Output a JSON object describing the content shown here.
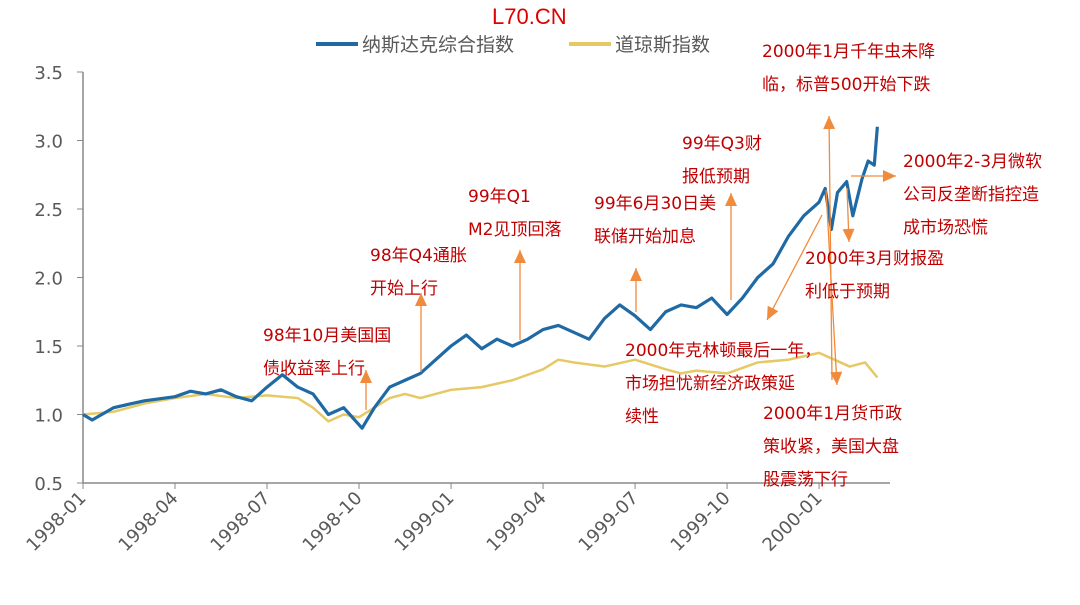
{
  "watermark": "L70.CN",
  "chart_data": {
    "type": "line",
    "title": "",
    "xlabel": "",
    "ylabel": "",
    "ylim": [
      0.5,
      3.5
    ],
    "yticks": [
      "0.5",
      "1.0",
      "1.5",
      "2.0",
      "2.5",
      "3.0",
      "3.5"
    ],
    "xticks": [
      "1998-01",
      "1998-04",
      "1998-07",
      "1998-10",
      "1999-01",
      "1999-04",
      "1999-07",
      "1999-10",
      "2000-01"
    ],
    "x_unit": "months since 1998-01",
    "legend_position": "top",
    "series": [
      {
        "name": "纳斯达克综合指数",
        "color": "#1f6aa5",
        "x": [
          0,
          0.3,
          1,
          2,
          3,
          3.5,
          4,
          4.5,
          5,
          5.5,
          6,
          6.5,
          7,
          7.5,
          8,
          8.5,
          9.1,
          9.5,
          10,
          10.5,
          11,
          11.5,
          12,
          12.5,
          13,
          13.5,
          14,
          14.5,
          15,
          15.5,
          16,
          16.5,
          17,
          17.5,
          18,
          18.5,
          19,
          19.5,
          20,
          20.5,
          21,
          21.5,
          22,
          22.5,
          23,
          23.5,
          24,
          24.2,
          24.4,
          24.6,
          24.9,
          25.1,
          25.4,
          25.6,
          25.8,
          25.9
        ],
        "values": [
          1.0,
          0.96,
          1.05,
          1.1,
          1.13,
          1.17,
          1.15,
          1.18,
          1.13,
          1.1,
          1.2,
          1.29,
          1.2,
          1.15,
          1.0,
          1.05,
          0.9,
          1.05,
          1.2,
          1.25,
          1.3,
          1.4,
          1.5,
          1.58,
          1.48,
          1.55,
          1.5,
          1.55,
          1.62,
          1.65,
          1.6,
          1.55,
          1.7,
          1.8,
          1.72,
          1.62,
          1.75,
          1.8,
          1.78,
          1.85,
          1.73,
          1.85,
          2.0,
          2.1,
          2.3,
          2.45,
          2.55,
          2.65,
          2.35,
          2.62,
          2.7,
          2.45,
          2.72,
          2.85,
          2.82,
          3.1
        ]
      },
      {
        "name": "道琼斯指数",
        "color": "#e6c865",
        "x": [
          0,
          1,
          2,
          3,
          4,
          5,
          6,
          7,
          7.5,
          8,
          8.5,
          9,
          9.5,
          10,
          10.5,
          11,
          12,
          13,
          14,
          15,
          15.5,
          16,
          17,
          18,
          19,
          19.5,
          20,
          21,
          22,
          23,
          24,
          24.5,
          25,
          25.5,
          25.9
        ],
        "values": [
          1.0,
          1.02,
          1.08,
          1.12,
          1.15,
          1.12,
          1.14,
          1.12,
          1.05,
          0.95,
          1.0,
          0.98,
          1.05,
          1.12,
          1.15,
          1.12,
          1.18,
          1.2,
          1.25,
          1.33,
          1.4,
          1.38,
          1.35,
          1.4,
          1.33,
          1.3,
          1.32,
          1.3,
          1.38,
          1.4,
          1.45,
          1.4,
          1.35,
          1.38,
          1.27
        ]
      }
    ],
    "annotations": [
      [
        "98年10月美国国",
        "债收益率上行"
      ],
      [
        "98年Q4通胀",
        "开始上行"
      ],
      [
        "99年Q1",
        "M2见顶回落"
      ],
      [
        "99年6月30日美",
        "联储开始加息"
      ],
      [
        "99年Q3财",
        "报低预期"
      ],
      [
        "2000年1月千年虫未降",
        "临，标普500开始下跌"
      ],
      [
        "2000年2-3月微软",
        "公司反垄断指控造",
        "成市场恐慌"
      ],
      [
        "2000年3月财报盈",
        "利低于预期"
      ],
      [
        "2000年克林顿最后一年，",
        "市场担忧新经济政策延",
        "续性"
      ],
      [
        "2000年1月货币政",
        "策收紧，美国大盘",
        "股震荡下行"
      ]
    ]
  }
}
